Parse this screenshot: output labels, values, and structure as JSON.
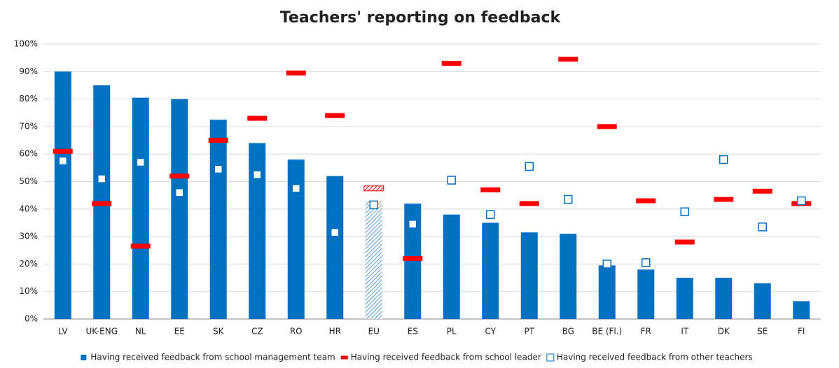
{
  "chart_data": {
    "type": "bar",
    "title": "Teachers' reporting on feedback",
    "categories": [
      "LV",
      "UK-ENG",
      "NL",
      "EE",
      "SK",
      "CZ",
      "RO",
      "HR",
      "EU",
      "ES",
      "PL",
      "CY",
      "PT",
      "BG",
      "BE (Fl.)",
      "FR",
      "IT",
      "DK",
      "SE",
      "FI"
    ],
    "highlight": "EU",
    "series": [
      {
        "name": "Having received feedback from school management team",
        "color": "#0070c0",
        "marker": "bar",
        "values": [
          90,
          85,
          80.5,
          80,
          72.5,
          64,
          58,
          52,
          43,
          42,
          38,
          35,
          31.5,
          31,
          19.5,
          18,
          15,
          15,
          13,
          6.5
        ]
      },
      {
        "name": "Having received feedback from school leader",
        "color": "#ff0000",
        "marker": "dash",
        "values": [
          61,
          42,
          26.5,
          52,
          65,
          73,
          89.5,
          74,
          47.5,
          22,
          93,
          47,
          42,
          94.5,
          70,
          43,
          28,
          43.5,
          46.5,
          42
        ]
      },
      {
        "name": "Having received feedback from other teachers",
        "color": "#0070c0",
        "marker": "square",
        "values": [
          57.5,
          51,
          57,
          46,
          54.5,
          52.5,
          47.5,
          31.5,
          41.5,
          34.5,
          50.5,
          38,
          55.5,
          43.5,
          20,
          20.5,
          39,
          58,
          33.5,
          43
        ]
      }
    ],
    "ylim": [
      0,
      100
    ],
    "yticks": [
      {
        "value": 0,
        "label": "0%"
      },
      {
        "value": 10,
        "label": "10%"
      },
      {
        "value": 20,
        "label": "20%"
      },
      {
        "value": 30,
        "label": "30%"
      },
      {
        "value": 40,
        "label": "40%"
      },
      {
        "value": 50,
        "label": "50%"
      },
      {
        "value": 60,
        "label": "60%"
      },
      {
        "value": 70,
        "label": "70%"
      },
      {
        "value": 80,
        "label": "80%"
      },
      {
        "value": 90,
        "label": "90%"
      },
      {
        "value": 100,
        "label": "100%"
      }
    ],
    "grid": true,
    "legend": "bottom"
  }
}
